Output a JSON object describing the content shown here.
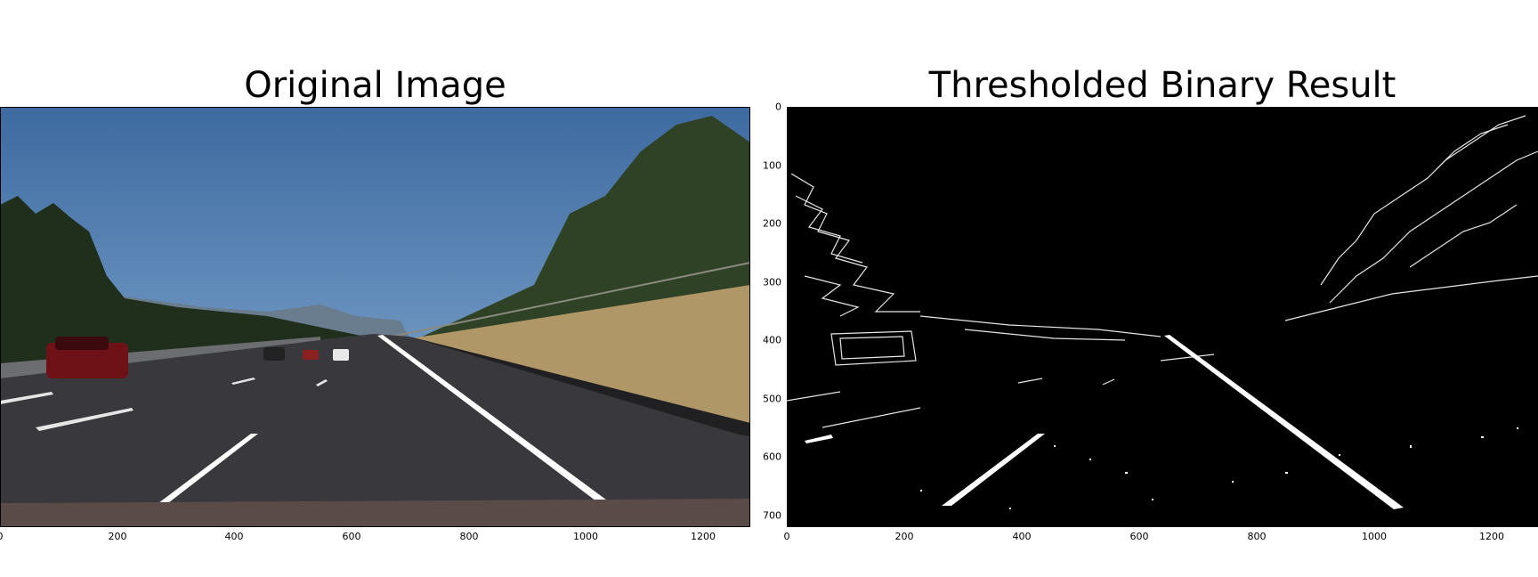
{
  "panels": {
    "left": {
      "title": "Original Image",
      "x_ticks": [
        "0",
        "200",
        "400",
        "600",
        "800",
        "1000",
        "1200"
      ]
    },
    "right": {
      "title": "Thresholded Binary Result",
      "x_ticks": [
        "0",
        "200",
        "400",
        "600",
        "800",
        "1000",
        "1200"
      ],
      "y_ticks": [
        "0",
        "100",
        "200",
        "300",
        "400",
        "500",
        "600",
        "700"
      ]
    }
  },
  "axis_range": {
    "x": [
      0,
      1280
    ],
    "y": [
      0,
      720
    ]
  },
  "colors": {
    "sky": "#4a78ac",
    "road": "#3b3b40",
    "grass": "#b59a6a",
    "trees": "#2e3d24",
    "lane": "#ffffff",
    "binary_bg": "#000000",
    "binary_fg": "#ffffff"
  }
}
